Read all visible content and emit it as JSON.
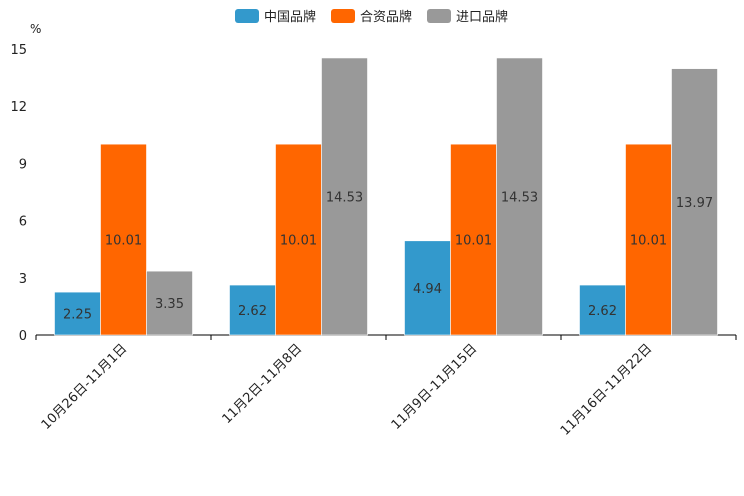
{
  "chart_data": {
    "type": "bar",
    "unit": "%",
    "categories": [
      "10月26日-11月1日",
      "11月2日-11月8日",
      "11月9日-11月15日",
      "11月16日-11月22日"
    ],
    "series": [
      {
        "name": "中国品牌",
        "color": "#3399CC",
        "values": [
          2.25,
          2.62,
          4.94,
          2.62
        ]
      },
      {
        "name": "合资品牌",
        "color": "#FF6600",
        "values": [
          10.01,
          10.01,
          10.01,
          10.01
        ]
      },
      {
        "name": "进口品牌",
        "color": "#999999",
        "values": [
          3.35,
          14.53,
          14.53,
          13.97
        ]
      }
    ],
    "ylim": [
      0,
      15
    ],
    "yticks": [
      0,
      3,
      6,
      9,
      12,
      15
    ],
    "legend_position": "top-center"
  }
}
